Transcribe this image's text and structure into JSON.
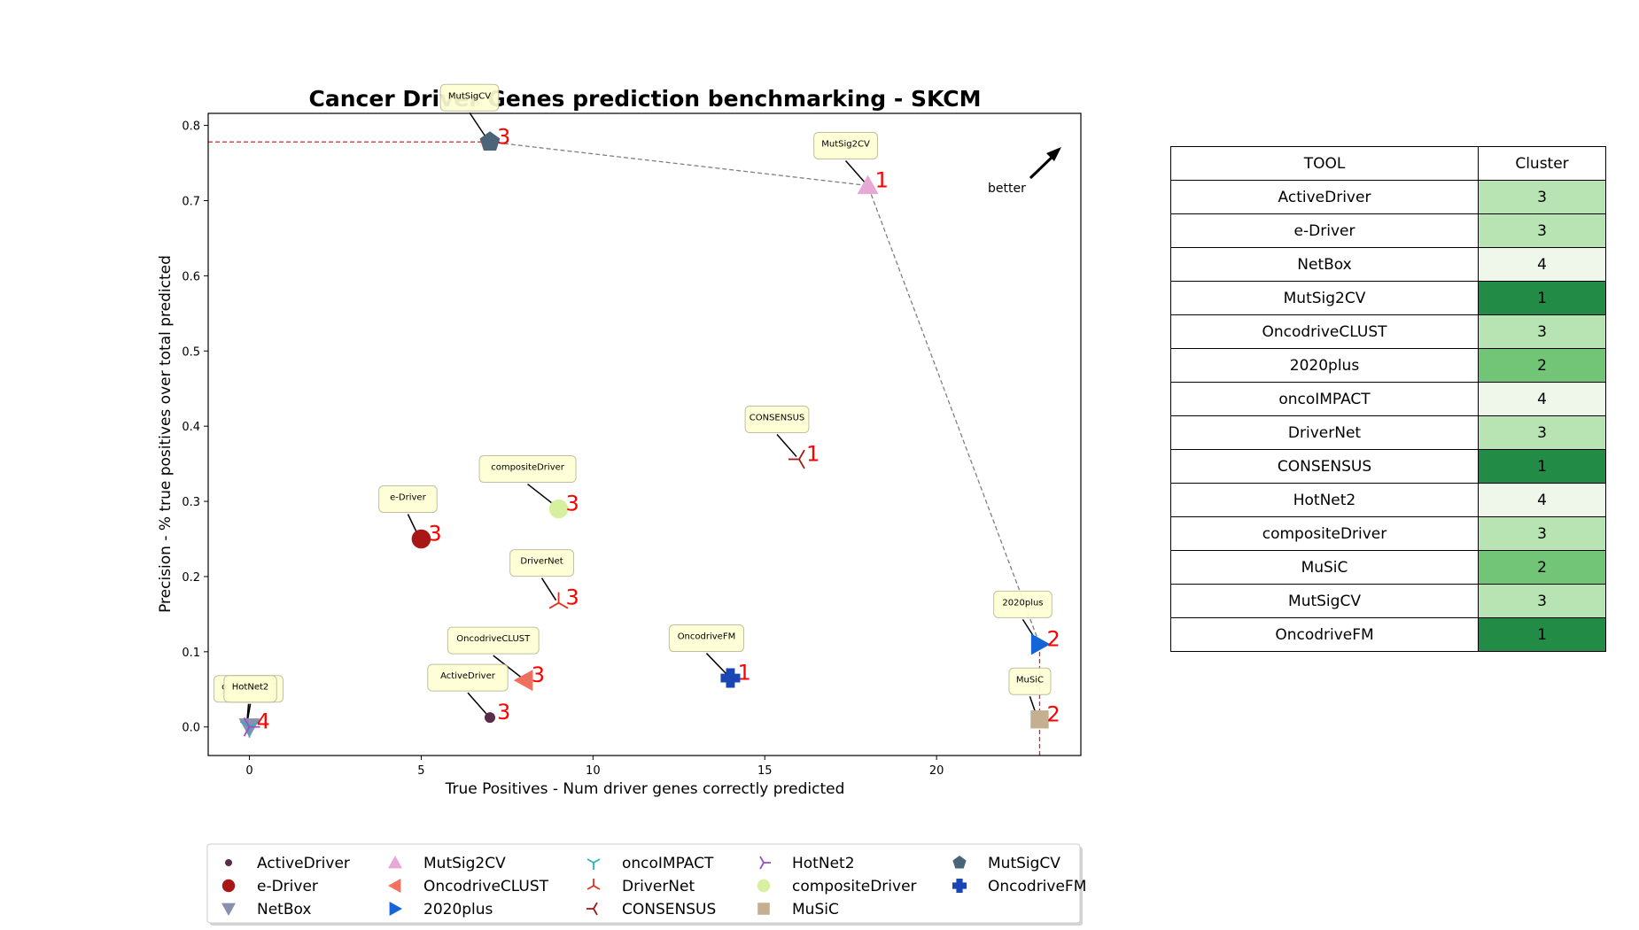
{
  "chart_data": {
    "type": "scatter",
    "title": "Cancer Driver Genes prediction benchmarking - SKCM",
    "xlabel": "True Positives - Num driver genes correctly predicted",
    "ylabel": "Precision - % true positives over total predicted",
    "xlim": [
      -1.2,
      24.2
    ],
    "ylim": [
      -0.038,
      0.816
    ],
    "xticks": [
      0,
      5,
      10,
      15,
      20
    ],
    "yticks": [
      0.0,
      0.1,
      0.2,
      0.3,
      0.4,
      0.5,
      0.6,
      0.7,
      0.8
    ],
    "grid": false,
    "legend_position": "bottom",
    "better_label": "better",
    "series": [
      {
        "name": "ActiveDriver",
        "x": 7,
        "y": 0.0125,
        "cluster": "3",
        "marker": "circle-small",
        "color": "#5b2b4a"
      },
      {
        "name": "e-Driver",
        "x": 5,
        "y": 0.25,
        "cluster": "3",
        "marker": "circle",
        "color": "#a91616"
      },
      {
        "name": "NetBox",
        "x": 0,
        "y": 0.0,
        "cluster": "4",
        "marker": "triangle-down",
        "color": "#8a8fb0"
      },
      {
        "name": "MutSig2CV",
        "x": 18,
        "y": 0.72,
        "cluster": "1",
        "marker": "triangle-up",
        "color": "#e7a8d6"
      },
      {
        "name": "OncodriveCLUST",
        "x": 8,
        "y": 0.062,
        "cluster": "3",
        "marker": "triangle-left",
        "color": "#f07060"
      },
      {
        "name": "2020plus",
        "x": 23,
        "y": 0.11,
        "cluster": "2",
        "marker": "triangle-right",
        "color": "#1565d8"
      },
      {
        "name": "oncoIMPACT",
        "x": 0,
        "y": 0.0,
        "cluster": "4",
        "marker": "tri-down",
        "color": "#2ab5b5"
      },
      {
        "name": "DriverNet",
        "x": 9,
        "y": 0.165,
        "cluster": "3",
        "marker": "tri-up",
        "color": "#e03020"
      },
      {
        "name": "CONSENSUS",
        "x": 16,
        "y": 0.356,
        "cluster": "1",
        "marker": "tri-left",
        "color": "#a01818"
      },
      {
        "name": "HotNet2",
        "x": 0,
        "y": 0.0,
        "cluster": "4",
        "marker": "tri-right",
        "color": "#9a4fc4"
      },
      {
        "name": "compositeDriver",
        "x": 9,
        "y": 0.29,
        "cluster": "3",
        "marker": "circle",
        "color": "#d6f0a0"
      },
      {
        "name": "MuSiC",
        "x": 23,
        "y": 0.01,
        "cluster": "2",
        "marker": "square",
        "color": "#c4b090"
      },
      {
        "name": "MutSigCV",
        "x": 7,
        "y": 0.778,
        "cluster": "3",
        "marker": "pentagon",
        "color": "#4a6478"
      },
      {
        "name": "OncodriveFM",
        "x": 14,
        "y": 0.065,
        "cluster": "1",
        "marker": "plus",
        "color": "#1a45b5"
      }
    ],
    "pareto_front": [
      {
        "x": 7,
        "y": 0.778
      },
      {
        "x": 18,
        "y": 0.72
      },
      {
        "x": 23,
        "y": 0.11
      }
    ],
    "reference_lines": {
      "horizontal_y": 0.778,
      "vertical_x": 23
    },
    "callouts": [
      {
        "label": "MutSigCV"
      },
      {
        "label": "MutSig2CV"
      },
      {
        "label": "CONSENSUS"
      },
      {
        "label": "compositeDriver"
      },
      {
        "label": "e-Driver"
      },
      {
        "label": "DriverNet"
      },
      {
        "label": "2020plus"
      },
      {
        "label": "OncodriveCLUST"
      },
      {
        "label": "OncodriveFM"
      },
      {
        "label": "ActiveDriver"
      },
      {
        "label": "MuSiC"
      },
      {
        "label": "oncoIMPACT"
      },
      {
        "label": "NetBox"
      },
      {
        "label": "HotNet2"
      }
    ]
  },
  "table": {
    "headers": [
      "TOOL",
      "Cluster"
    ],
    "rows": [
      {
        "tool": "ActiveDriver",
        "cluster": "3",
        "color": "#b8e3b3"
      },
      {
        "tool": "e-Driver",
        "cluster": "3",
        "color": "#b8e3b3"
      },
      {
        "tool": "NetBox",
        "cluster": "4",
        "color": "#eef7e9"
      },
      {
        "tool": "MutSig2CV",
        "cluster": "1",
        "color": "#228b45"
      },
      {
        "tool": "OncodriveCLUST",
        "cluster": "3",
        "color": "#b8e3b3"
      },
      {
        "tool": "2020plus",
        "cluster": "2",
        "color": "#72c476"
      },
      {
        "tool": "oncoIMPACT",
        "cluster": "4",
        "color": "#eef7e9"
      },
      {
        "tool": "DriverNet",
        "cluster": "3",
        "color": "#b8e3b3"
      },
      {
        "tool": "CONSENSUS",
        "cluster": "1",
        "color": "#228b45"
      },
      {
        "tool": "HotNet2",
        "cluster": "4",
        "color": "#eef7e9"
      },
      {
        "tool": "compositeDriver",
        "cluster": "3",
        "color": "#b8e3b3"
      },
      {
        "tool": "MuSiC",
        "cluster": "2",
        "color": "#72c476"
      },
      {
        "tool": "MutSigCV",
        "cluster": "3",
        "color": "#b8e3b3"
      },
      {
        "tool": "OncodriveFM",
        "cluster": "1",
        "color": "#228b45"
      }
    ]
  }
}
